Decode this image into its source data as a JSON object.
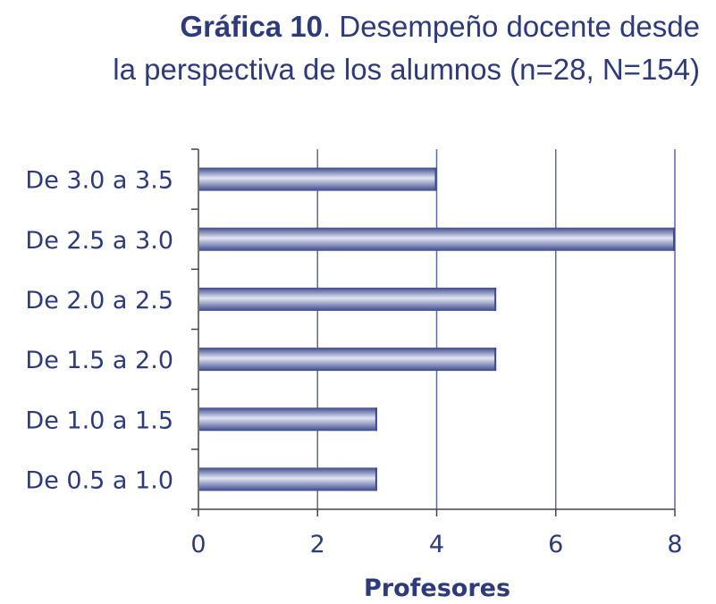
{
  "header": {
    "title_bold": "Gráfica 10",
    "title_rest": ". Desempeño docente desde",
    "title_line2": "la perspectiva de los alumnos (n=28, N=154)"
  },
  "chart_data": {
    "type": "bar",
    "orientation": "horizontal",
    "title": "Gráfica 10. Desempeño docente desde la perspectiva de los alumnos (n=28, N=154)",
    "xlabel": "Profesores",
    "ylabel": "",
    "categories": [
      "De 3.0 a 3.5",
      "De 2.5 a 3.0",
      "De 2.0 a 2.5",
      "De 1.5 a 2.0",
      "De 1.0 a 1.5",
      "De 0.5 a 1.0"
    ],
    "values": [
      4,
      8,
      5,
      5,
      3,
      3
    ],
    "xlim": [
      0,
      8
    ],
    "xticks": [
      0,
      2,
      4,
      6,
      8
    ],
    "grid": true,
    "colors": {
      "bar_dark": "#3d4a8e",
      "bar_light": "#d9dcef",
      "text": "#2d3a7c",
      "grid": "#5a6aa3"
    }
  }
}
